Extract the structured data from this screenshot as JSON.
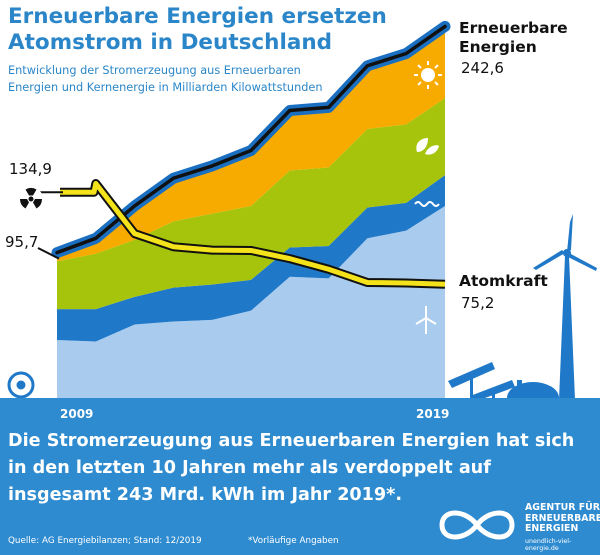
{
  "header": {
    "title_line1": "Erneuerbare Energien ersetzen",
    "title_line2": "Atomstrom in Deutschland",
    "subtitle_line1": "Entwicklung der Stromerzeugung aus Erneuerbaren",
    "subtitle_line2": "Energien und Kernenergie in Milliarden Kilowattstunden"
  },
  "colors": {
    "solar": "#f7ab00",
    "biomass": "#a6c40c",
    "hydro": "#1f78c8",
    "wind": "#a8cbee",
    "outline_blue": "#1a6fc0",
    "nuclear_line": "#f4e21a",
    "banner": "#2e8bd0",
    "title": "#2a86c8"
  },
  "chart_data": {
    "type": "area",
    "x": [
      2009,
      2010,
      2011,
      2012,
      2013,
      2014,
      2015,
      2016,
      2017,
      2018,
      2019
    ],
    "ylim": [
      0,
      260
    ],
    "series": [
      {
        "icon": "wind-turbine-icon",
        "values": [
          39,
          38,
          49,
          51,
          52,
          58,
          80,
          79,
          105,
          110,
          126
        ]
      },
      {
        "icon": "water-icon",
        "values": [
          20,
          21,
          18,
          22,
          23,
          20,
          19,
          21,
          20,
          18,
          20
        ]
      },
      {
        "icon": "leaves-icon",
        "values": [
          31,
          36,
          37,
          43,
          46,
          48,
          50,
          51,
          51,
          51,
          50
        ]
      },
      {
        "icon": "sun-icon",
        "values": [
          6,
          9,
          22,
          28,
          31,
          36,
          39,
          39,
          41,
          46,
          47
        ]
      }
    ],
    "renewables_total": {
      "name": "Erneuerbare Energien",
      "values": [
        95.7,
        105,
        126,
        144,
        152,
        162,
        188,
        190,
        217,
        225,
        242.6
      ],
      "start_label": "95,7",
      "end_label": "242,6"
    },
    "nuclear": {
      "name": "Atomkraft",
      "icon": "radiation-icon",
      "values": [
        134.9,
        140.6,
        108,
        99.5,
        97.3,
        97.1,
        91.8,
        84.9,
        76.3,
        76,
        75.2
      ],
      "start_label": "134,9",
      "end_label": "75,2"
    },
    "x_tick_labels": {
      "start": "2009",
      "end": "2019"
    }
  },
  "footer": {
    "headline": "Die Stromerzeugung aus Erneuerbaren Energien hat sich in den letzten 10 Jahren mehr als verdoppelt auf insgesamt 243 Mrd. kWh im Jahr 2019*.",
    "source": "Quelle: AG Energiebilanzen; Stand: 12/2019",
    "footnote": "*Vorläufige Angaben",
    "logo_line1": "AGENTUR FÜR",
    "logo_line2": "ERNEUERBARE",
    "logo_line3": "ENERGIEN",
    "logo_url": "unendlich-viel-energie.de"
  }
}
